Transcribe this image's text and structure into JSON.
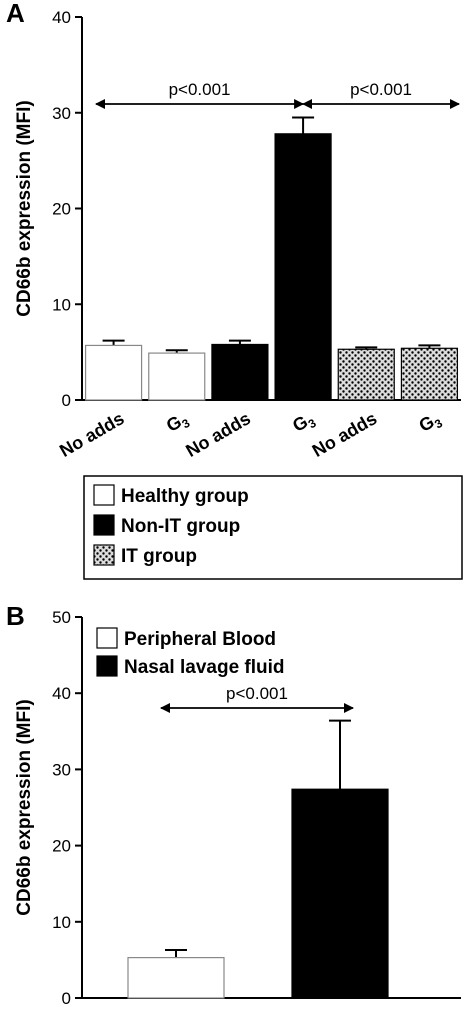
{
  "chart_data": [
    {
      "panel": "A",
      "type": "bar",
      "ylabel": "CD66b expression (MFI)",
      "ylim": [
        0,
        40
      ],
      "yticks": [
        0,
        10,
        20,
        30,
        40
      ],
      "categories": [
        "No adds",
        "G3",
        "No adds",
        "G3",
        "No adds",
        "G3"
      ],
      "groups": [
        "Healthy group",
        "Healthy group",
        "Non-IT group",
        "Non-IT group",
        "IT group",
        "IT group"
      ],
      "values": [
        5.7,
        4.9,
        5.8,
        27.8,
        5.3,
        5.4
      ],
      "errors": [
        0.5,
        0.3,
        0.4,
        1.7,
        0.2,
        0.3
      ],
      "legend": [
        {
          "name": "Healthy group",
          "fill": "white"
        },
        {
          "name": "Non-IT group",
          "fill": "black"
        },
        {
          "name": "IT group",
          "fill": "dotted"
        }
      ],
      "annotations": [
        {
          "text": "p<0.001",
          "from": 0,
          "to": 3
        },
        {
          "text": "p<0.001",
          "from": 3,
          "to": 5
        }
      ]
    },
    {
      "panel": "B",
      "type": "bar",
      "ylabel": "CD66b expression (MFI)",
      "ylim": [
        0,
        50
      ],
      "yticks": [
        0,
        10,
        20,
        30,
        40,
        50
      ],
      "categories": [
        "Peripheral Blood",
        "Nasal lavage fluid"
      ],
      "values": [
        5.3,
        27.4
      ],
      "errors": [
        1.0,
        9.0
      ],
      "legend": [
        {
          "name": "Peripheral Blood",
          "fill": "white"
        },
        {
          "name": "Nasal lavage fluid",
          "fill": "black"
        }
      ],
      "annotations": [
        {
          "text": "p<0.001",
          "from": 0,
          "to": 1
        }
      ]
    }
  ],
  "labels": {
    "panel_a": "A",
    "panel_b": "B"
  },
  "colors": {
    "black": "#000000",
    "white": "#ffffff",
    "dot_bg": "#e8e8e8"
  }
}
